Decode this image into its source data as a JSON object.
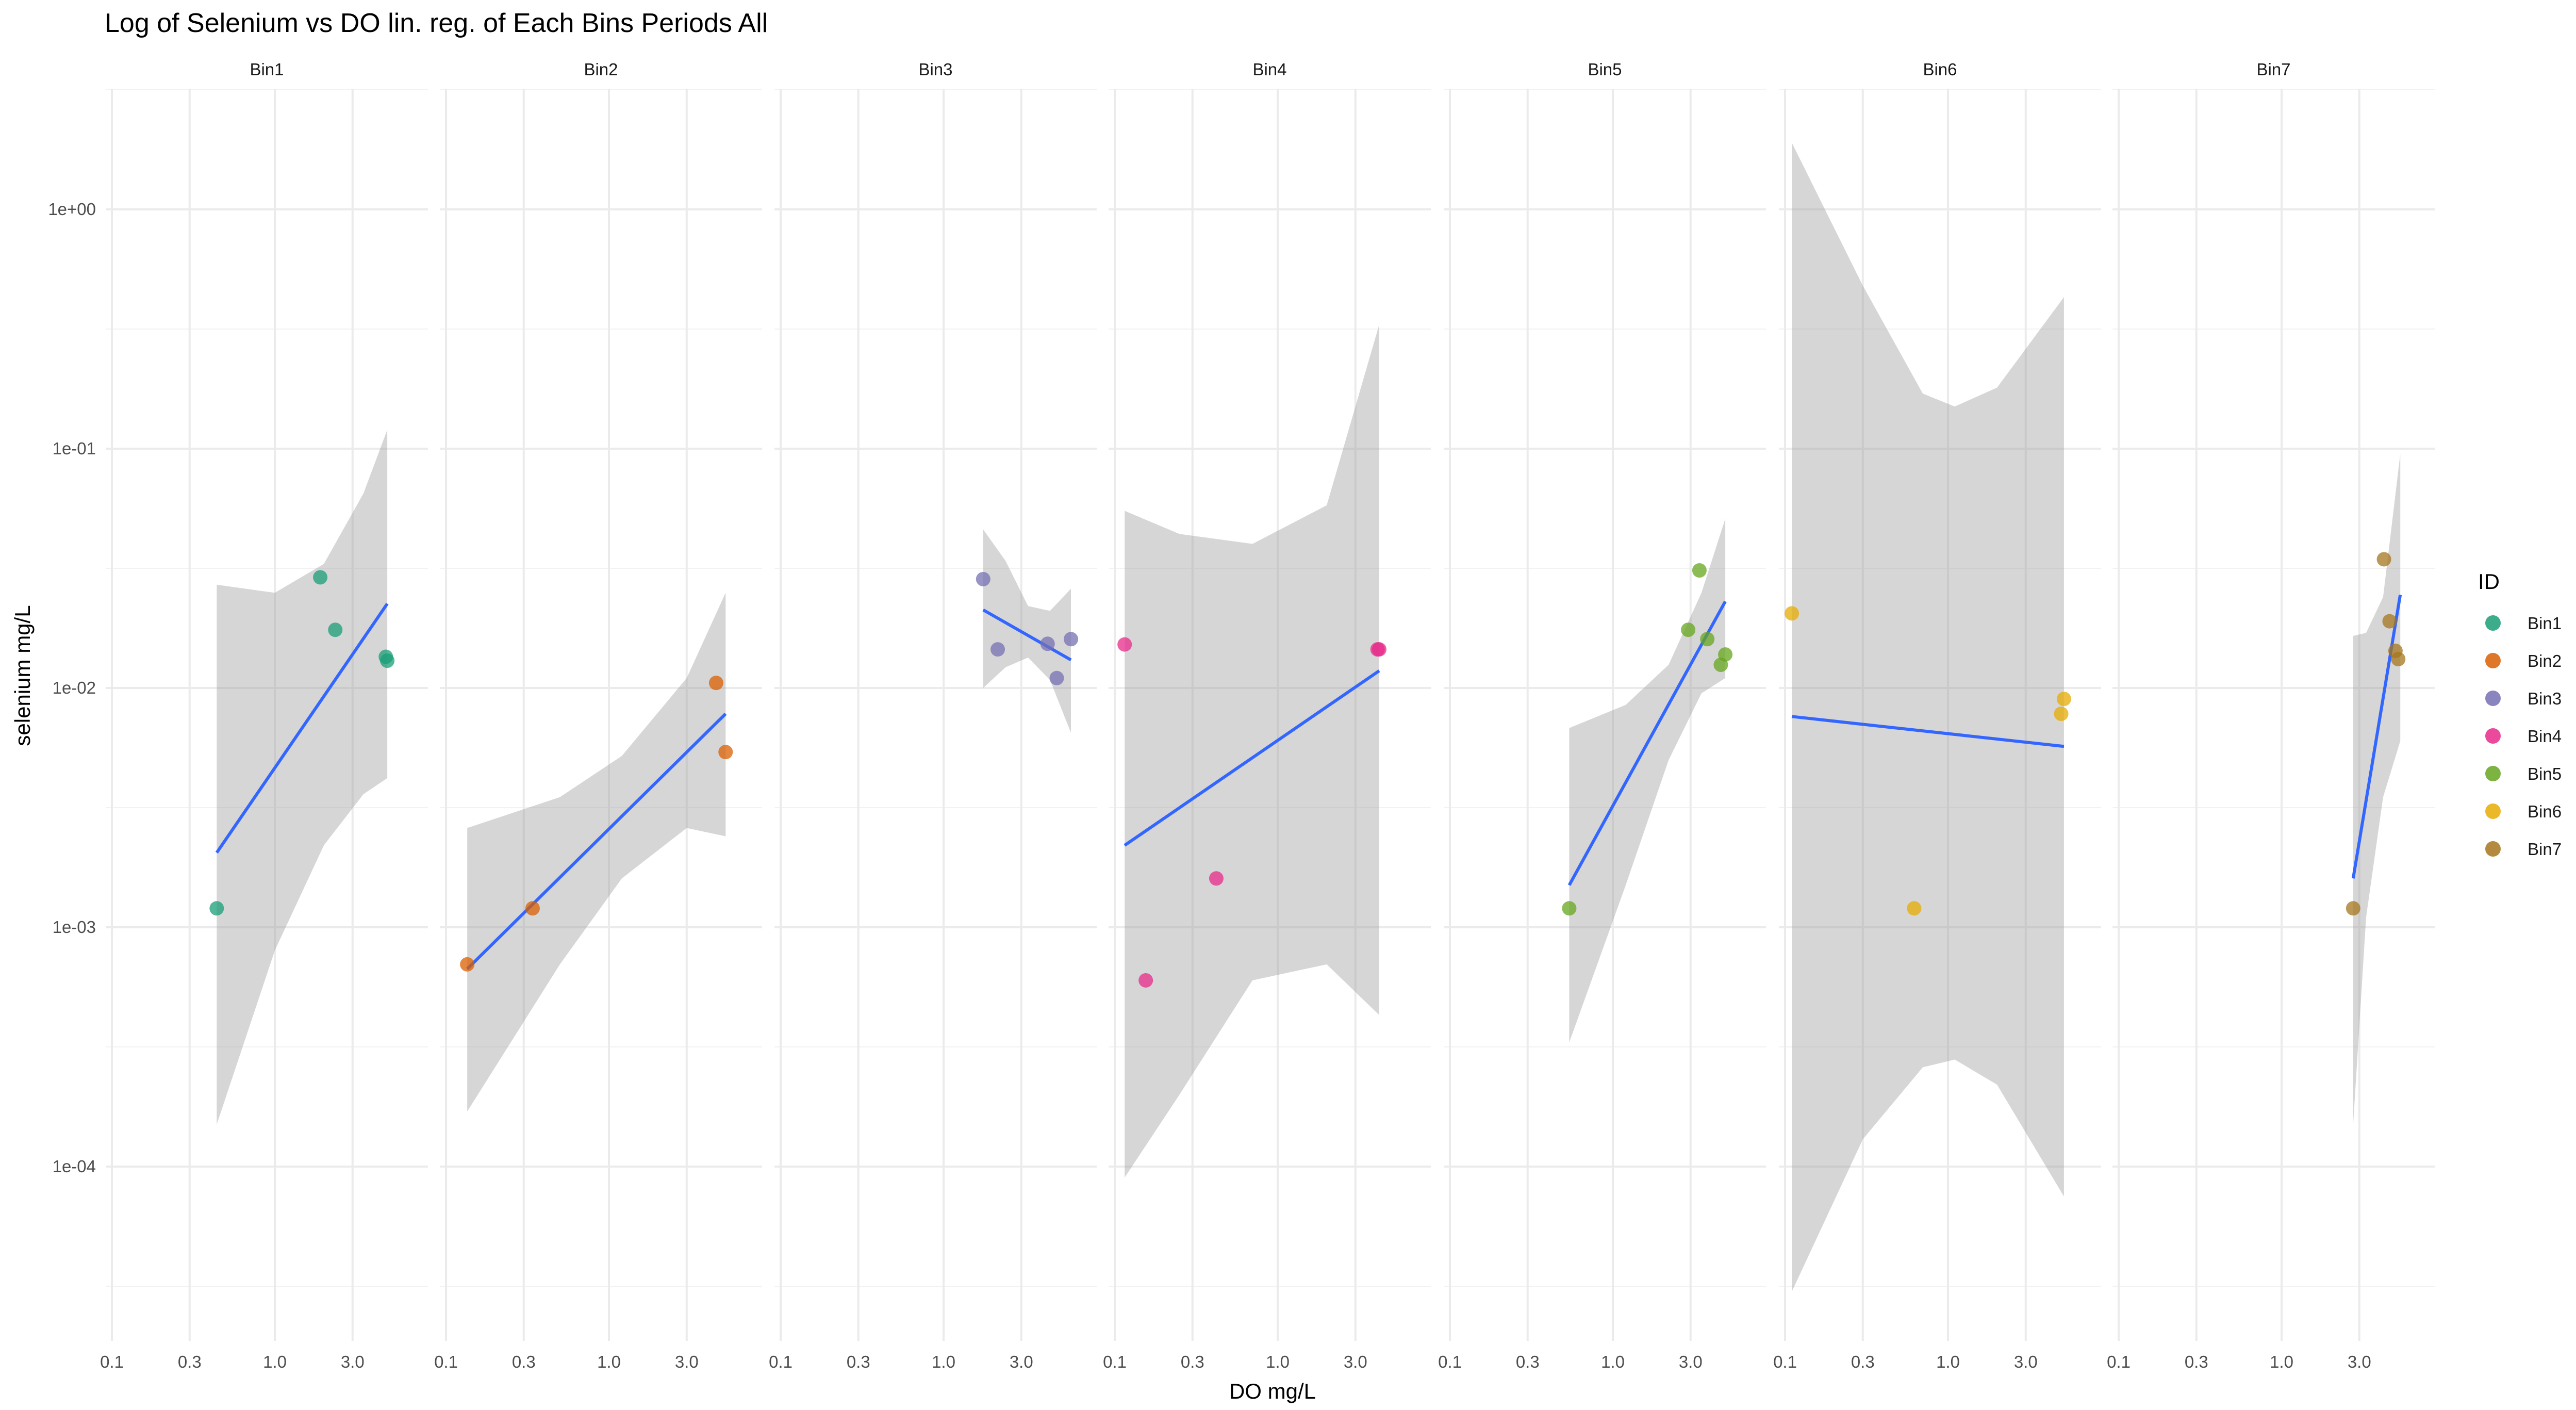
{
  "chart_data": {
    "type": "scatter",
    "title": "Log of Selenium vs DO lin. reg. of Each Bins Periods All",
    "xlabel": "DO mg/L",
    "ylabel": "selenium mg/L",
    "x_scale": "log10",
    "y_scale": "log10",
    "xlim": [
      0.1,
      6.0
    ],
    "ylim": [
      2e-05,
      3.0
    ],
    "x_ticks": [
      0.1,
      0.3,
      1.0,
      3.0
    ],
    "x_tick_labels": [
      "0.1",
      "0.3",
      "1.0",
      "3.0"
    ],
    "y_ticks": [
      0.0001,
      0.001,
      0.01,
      0.1,
      1.0
    ],
    "y_tick_labels": [
      "1e-04",
      "1e-03",
      "1e-02",
      "1e-01",
      "1e+00"
    ],
    "grid": true,
    "legend": {
      "title": "ID",
      "placement": "right",
      "entries": [
        "Bin1",
        "Bin2",
        "Bin3",
        "Bin4",
        "Bin5",
        "Bin6",
        "Bin7"
      ]
    },
    "colors": {
      "Bin1": "#1b9e77",
      "Bin2": "#d95f02",
      "Bin3": "#7570b3",
      "Bin4": "#e7298a",
      "Bin5": "#66a61e",
      "Bin6": "#e6ab02",
      "Bin7": "#a6761d",
      "regression_line": "#3366ff",
      "confidence_band": "#999999"
    },
    "facets": [
      {
        "name": "Bin1",
        "points": [
          {
            "x": 0.44,
            "y": 0.0012
          },
          {
            "x": 1.9,
            "y": 0.029
          },
          {
            "x": 2.35,
            "y": 0.0175
          },
          {
            "x": 4.8,
            "y": 0.0135
          },
          {
            "x": 4.9,
            "y": 0.013
          }
        ],
        "fit": {
          "x": [
            0.44,
            4.9
          ],
          "y": [
            0.00205,
            0.0225
          ]
        },
        "band": {
          "x": [
            0.44,
            1.0,
            2.0,
            3.5,
            4.9
          ],
          "lower": [
            0.00015,
            0.0008,
            0.0022,
            0.0036,
            0.0042
          ],
          "upper": [
            0.027,
            0.025,
            0.033,
            0.065,
            0.12
          ]
        }
      },
      {
        "name": "Bin2",
        "points": [
          {
            "x": 0.135,
            "y": 0.0007
          },
          {
            "x": 0.34,
            "y": 0.0012
          },
          {
            "x": 4.55,
            "y": 0.0105
          },
          {
            "x": 5.2,
            "y": 0.0054
          }
        ],
        "fit": {
          "x": [
            0.135,
            5.2
          ],
          "y": [
            0.00067,
            0.0078
          ]
        },
        "band": {
          "x": [
            0.135,
            0.5,
            1.2,
            3.0,
            5.2
          ],
          "lower": [
            0.00017,
            0.0007,
            0.0016,
            0.0026,
            0.0024
          ],
          "upper": [
            0.0026,
            0.0035,
            0.0052,
            0.011,
            0.025
          ]
        }
      },
      {
        "name": "Bin3",
        "points": [
          {
            "x": 1.75,
            "y": 0.0285
          },
          {
            "x": 2.15,
            "y": 0.0145
          },
          {
            "x": 4.35,
            "y": 0.0153
          },
          {
            "x": 4.95,
            "y": 0.011
          },
          {
            "x": 6.05,
            "y": 0.016
          }
        ],
        "fit": {
          "x": [
            1.75,
            6.05
          ],
          "y": [
            0.0212,
            0.0131
          ]
        },
        "band": {
          "x": [
            1.75,
            2.4,
            3.3,
            4.5,
            6.05
          ],
          "lower": [
            0.01,
            0.0122,
            0.0134,
            0.0108,
            0.0065
          ],
          "upper": [
            0.046,
            0.034,
            0.022,
            0.021,
            0.026
          ]
        }
      },
      {
        "name": "Bin4",
        "points": [
          {
            "x": 0.115,
            "y": 0.0152
          },
          {
            "x": 0.155,
            "y": 0.0006
          },
          {
            "x": 0.42,
            "y": 0.0016
          },
          {
            "x": 4.1,
            "y": 0.0145
          },
          {
            "x": 4.2,
            "y": 0.0145
          }
        ],
        "fit": {
          "x": [
            0.115,
            4.2
          ],
          "y": [
            0.0022,
            0.0118
          ]
        },
        "band": {
          "x": [
            0.115,
            0.25,
            0.7,
            2.0,
            4.2
          ],
          "lower": [
            9e-05,
            0.0002,
            0.0006,
            0.0007,
            0.00043
          ],
          "upper": [
            0.055,
            0.044,
            0.04,
            0.058,
            0.33
          ]
        }
      },
      {
        "name": "Bin5",
        "points": [
          {
            "x": 0.54,
            "y": 0.0012
          },
          {
            "x": 2.9,
            "y": 0.0175
          },
          {
            "x": 3.4,
            "y": 0.031
          },
          {
            "x": 3.8,
            "y": 0.016
          },
          {
            "x": 4.6,
            "y": 0.0125
          },
          {
            "x": 4.9,
            "y": 0.0138
          }
        ],
        "fit": {
          "x": [
            0.54,
            4.9
          ],
          "y": [
            0.0015,
            0.023
          ]
        },
        "band": {
          "x": [
            0.54,
            1.2,
            2.2,
            3.5,
            4.9
          ],
          "lower": [
            0.00033,
            0.0015,
            0.005,
            0.0095,
            0.011
          ],
          "upper": [
            0.0068,
            0.0085,
            0.0125,
            0.025,
            0.051
          ]
        }
      },
      {
        "name": "Bin6",
        "points": [
          {
            "x": 0.11,
            "y": 0.0205
          },
          {
            "x": 0.62,
            "y": 0.0012
          },
          {
            "x": 4.95,
            "y": 0.0078
          },
          {
            "x": 5.15,
            "y": 0.009
          }
        ],
        "fit": {
          "x": [
            0.11,
            5.15
          ],
          "y": [
            0.0076,
            0.0057
          ]
        },
        "band": {
          "x": [
            0.11,
            0.3,
            0.7,
            1.1,
            2.0,
            5.15
          ],
          "lower": [
            3e-05,
            0.00013,
            0.00026,
            0.00028,
            0.00022,
            7.5e-05
          ],
          "upper": [
            1.9,
            0.48,
            0.17,
            0.15,
            0.18,
            0.43
          ]
        }
      },
      {
        "name": "Bin7",
        "points": [
          {
            "x": 2.75,
            "y": 0.0012
          },
          {
            "x": 4.25,
            "y": 0.0345
          },
          {
            "x": 4.6,
            "y": 0.019
          },
          {
            "x": 5.0,
            "y": 0.0143
          },
          {
            "x": 5.2,
            "y": 0.0132
          }
        ],
        "fit": {
          "x": [
            2.75,
            5.35
          ],
          "y": [
            0.0016,
            0.0245
          ]
        },
        "band": {
          "x": [
            2.75,
            3.3,
            4.2,
            5.35
          ],
          "lower": [
            0.00015,
            0.0011,
            0.0035,
            0.006
          ],
          "upper": [
            0.0165,
            0.017,
            0.024,
            0.095
          ]
        }
      }
    ]
  }
}
